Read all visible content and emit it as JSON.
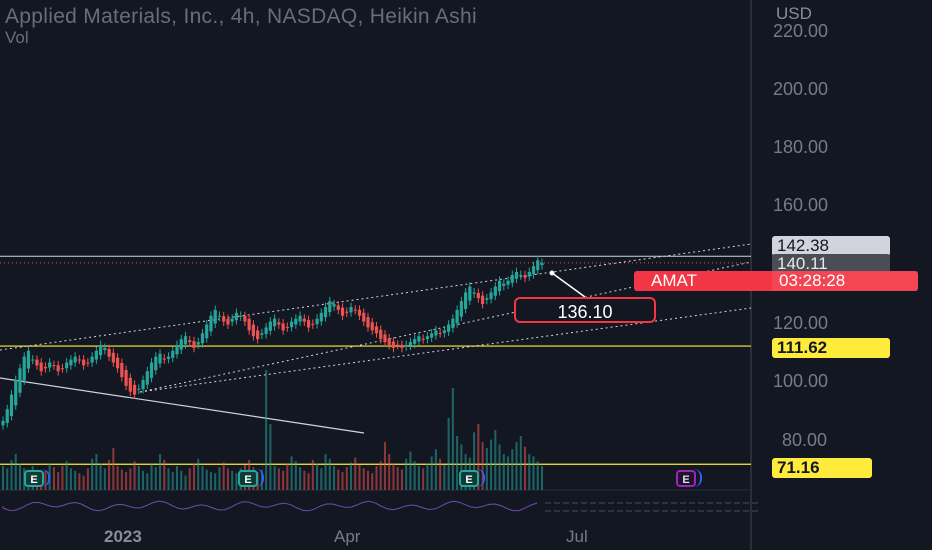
{
  "header": {
    "title": "Applied Materials, Inc., 4h, NASDAQ, Heikin Ashi",
    "volume_label": "Vol"
  },
  "price_axis": {
    "currency": "USD",
    "ticks": [
      "220.00",
      "200.00",
      "180.00",
      "160.00",
      "120.00",
      "100.00",
      "80.00"
    ]
  },
  "time_axis": {
    "ticks": [
      {
        "label": "2023",
        "bold": true
      },
      {
        "label": "Apr",
        "bold": false
      },
      {
        "label": "Jul",
        "bold": false
      }
    ]
  },
  "labels": {
    "channel_top_price": "142.38",
    "last_price": "140.11",
    "symbol": "AMAT",
    "countdown": "03:28:28",
    "callout_price": "136.10",
    "support_1": "111.62",
    "support_2": "71.16"
  },
  "earnings_marker": "E",
  "colors": {
    "background": "#131722",
    "up": "#26a69a",
    "down": "#ef5350",
    "horizontal_level": "#ffeb3b",
    "symbol_badge": "#f23645",
    "future_earnings": "#9c27b0"
  },
  "chart_data": {
    "type": "candlestick",
    "style": "Heikin Ashi",
    "symbol": "AMAT",
    "exchange": "NASDAQ",
    "interval": "4h",
    "y_range": [
      71,
      221
    ],
    "y_unit": "USD",
    "horizontal_lines": [
      111.62,
      71.16
    ],
    "channel_lines": [
      {
        "name": "upper",
        "from": {
          "x": "2022-11",
          "y": 111
        },
        "to": {
          "x": "2023-07",
          "y": 142.38
        }
      },
      {
        "name": "middle",
        "from": {
          "x": "2022-12",
          "y": 96
        },
        "to": {
          "x": "2023-07",
          "y": 137
        }
      },
      {
        "name": "lower",
        "from": {
          "x": "2022-12",
          "y": 94
        },
        "to": {
          "x": "2023-07",
          "y": 126
        }
      }
    ],
    "trend_line": {
      "from": {
        "x": "2022-11",
        "y": 100
      },
      "to": {
        "x": "2023-04",
        "y": 80
      }
    },
    "last_price": 140.11,
    "annotation_price": 136.1,
    "closes": [
      86,
      90,
      95,
      100,
      104,
      108,
      110,
      107,
      105,
      103,
      104,
      106,
      105,
      103,
      104,
      106,
      107,
      108,
      107,
      105,
      106,
      108,
      110,
      112,
      111,
      108,
      106,
      104,
      101,
      98,
      96,
      95,
      97,
      100,
      103,
      106,
      108,
      109,
      107,
      108,
      110,
      112,
      114,
      115,
      113,
      111,
      113,
      116,
      119,
      122,
      124,
      122,
      120,
      119,
      121,
      123,
      122,
      120,
      117,
      115,
      114,
      116,
      118,
      120,
      121,
      119,
      117,
      118,
      120,
      121,
      122,
      120,
      118,
      119,
      121,
      123,
      125,
      127,
      126,
      124,
      122,
      123,
      125,
      124,
      122,
      120,
      118,
      117,
      116,
      114,
      113,
      112,
      111,
      112,
      111,
      112,
      113,
      114,
      115,
      114,
      115,
      116,
      117,
      116,
      117,
      119,
      121,
      124,
      127,
      130,
      132,
      130,
      128,
      126,
      128,
      130,
      132,
      134,
      133,
      134,
      136,
      137,
      136,
      135,
      137,
      139,
      141,
      140.11
    ],
    "volume_relative": [
      20,
      18,
      25,
      30,
      22,
      18,
      15,
      20,
      17,
      14,
      16,
      22,
      19,
      15,
      20,
      24,
      18,
      16,
      14,
      12,
      18,
      26,
      30,
      22,
      18,
      25,
      35,
      20,
      17,
      15,
      18,
      24,
      20,
      16,
      14,
      22,
      19,
      30,
      25,
      18,
      15,
      20,
      16,
      12,
      18,
      22,
      26,
      20,
      17,
      15,
      14,
      19,
      23,
      18,
      16,
      14,
      18,
      21,
      25,
      19,
      15,
      17,
      100,
      55,
      20,
      18,
      16,
      22,
      28,
      24,
      19,
      16,
      14,
      25,
      22,
      18,
      30,
      26,
      20,
      17,
      15,
      19,
      23,
      27,
      21,
      18,
      16,
      14,
      20,
      24,
      40,
      30,
      22,
      19,
      17,
      26,
      32,
      24,
      20,
      18,
      22,
      28,
      34,
      26,
      21,
      60,
      85,
      45,
      38,
      30,
      27,
      48,
      55,
      40,
      35,
      42,
      50,
      38,
      30,
      28,
      34,
      40,
      45,
      36,
      30,
      28,
      24,
      20
    ]
  }
}
